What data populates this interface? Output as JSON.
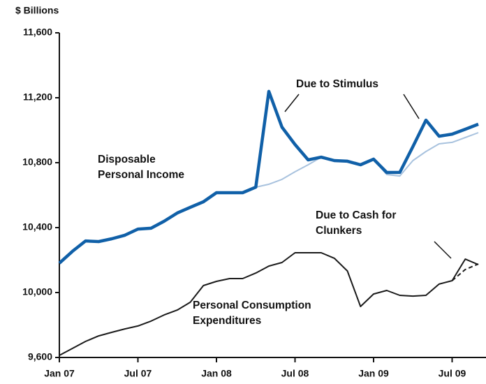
{
  "chart_data": {
    "type": "line",
    "y_label": "$ Billions",
    "categories": [
      "Jan 07",
      null,
      null,
      null,
      null,
      null,
      "Jul 07",
      null,
      null,
      null,
      null,
      null,
      "Jan 08",
      null,
      null,
      null,
      null,
      null,
      "Jul 08",
      null,
      null,
      null,
      null,
      null,
      "Jan 09",
      null,
      null,
      null,
      null,
      null,
      "Jul 09",
      null,
      null
    ],
    "series": [
      {
        "name": "Disposable Personal Income",
        "color": "#1060a8",
        "values": [
          10181,
          10254,
          10318,
          10314,
          10331,
          10353,
          10391,
          10396,
          10439,
          10490,
          10525,
          10559,
          10615,
          10615,
          10615,
          10649,
          11239,
          11019,
          10912,
          10817,
          10834,
          10813,
          10809,
          10787,
          10822,
          10740,
          10740,
          10899,
          11062,
          10963,
          10976,
          11006,
          11037
        ]
      },
      {
        "color": "#a8c2de",
        "values": [
          null,
          null,
          null,
          null,
          null,
          null,
          null,
          null,
          null,
          null,
          null,
          null,
          null,
          null,
          null,
          10649,
          10667,
          10697,
          10744,
          10787,
          10834,
          10813,
          10809,
          10787,
          10822,
          10727,
          10718,
          10813,
          10869,
          10916,
          10925,
          10955,
          10985
        ]
      },
      {
        "name": "Personal Consumption Expenditures",
        "color": "#1a1a1a",
        "values": [
          9613,
          9656,
          9699,
          9733,
          9755,
          9776,
          9794,
          9824,
          9862,
          9892,
          9940,
          10043,
          10069,
          10086,
          10086,
          10120,
          10163,
          10185,
          10245,
          10245,
          10245,
          10211,
          10133,
          9914,
          9991,
          10013,
          9983,
          9978,
          9983,
          10052,
          10073,
          10206,
          10172
        ]
      },
      {
        "color": "#1a1a1a",
        "dash": true,
        "values": [
          null,
          null,
          null,
          null,
          null,
          null,
          null,
          null,
          null,
          null,
          null,
          null,
          null,
          null,
          null,
          null,
          null,
          null,
          null,
          null,
          null,
          null,
          null,
          null,
          null,
          null,
          null,
          null,
          null,
          null,
          10073,
          10142,
          10176
        ]
      }
    ],
    "annotations": [
      "Due to Stimulus",
      "Due to Cash for Clunkers"
    ],
    "ylim": [
      9600,
      11600
    ],
    "yticks": [
      {
        "value": 9600,
        "label": "9,600"
      },
      {
        "value": 10000,
        "label": "10,000"
      },
      {
        "value": 10400,
        "label": "10,400"
      },
      {
        "value": 10800,
        "label": "10,800"
      },
      {
        "value": 11200,
        "label": "11,200"
      },
      {
        "value": 11600,
        "label": "11,600"
      }
    ],
    "grid": false
  }
}
